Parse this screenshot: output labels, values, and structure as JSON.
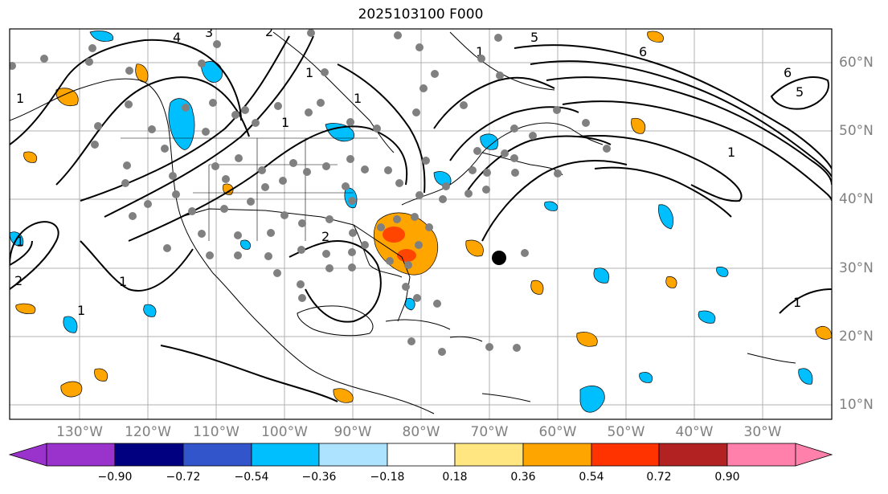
{
  "title": "2025103100 F000",
  "lat_labels": [
    "60°N",
    "50°N",
    "40°N",
    "30°N",
    "20°N",
    "10°N"
  ],
  "lon_labels": [
    "130°W",
    "120°W",
    "110°W",
    "100°W",
    "90°W",
    "80°W",
    "70°W",
    "60°W",
    "50°W",
    "40°W",
    "30°W"
  ],
  "colorbar": {
    "ticks": [
      "−0.90",
      "−0.72",
      "−0.54",
      "−0.36",
      "−0.18",
      "0.18",
      "0.36",
      "0.54",
      "0.72",
      "0.90"
    ],
    "colors": [
      "#9933cc",
      "#000080",
      "#3355cc",
      "#00bfff",
      "#aee3ff",
      "#ffffff",
      "#ffe680",
      "#ffa500",
      "#ff3300",
      "#b22222",
      "#ff80aa"
    ]
  },
  "contour_labels": [
    "1",
    "2",
    "3",
    "4",
    "5",
    "6",
    "1",
    "1",
    "1",
    "1",
    "2",
    "1",
    "1",
    "5",
    "1",
    "6",
    "2",
    "1",
    "1"
  ],
  "colors": {
    "warm_fill": "#ffa500",
    "strong_warm": "#ff4500",
    "cool_fill": "#00bfff",
    "station": "#808080",
    "contour": "#000000"
  }
}
